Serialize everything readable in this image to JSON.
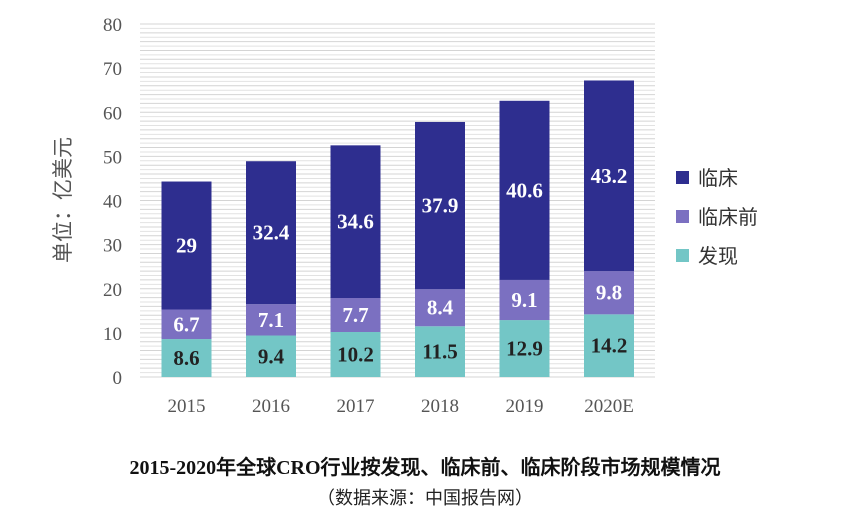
{
  "chart_data": {
    "type": "bar",
    "stacked": true,
    "categories": [
      "2015",
      "2016",
      "2017",
      "2018",
      "2019",
      "2020E"
    ],
    "series": [
      {
        "name": "发现",
        "values": [
          8.6,
          9.4,
          10.2,
          11.5,
          12.9,
          14.2
        ],
        "color": "#73C6C6",
        "label_color": "#222222"
      },
      {
        "name": "临床前",
        "values": [
          6.7,
          7.1,
          7.7,
          8.4,
          9.1,
          9.8
        ],
        "color": "#7B70C1",
        "label_color": "#ffffff"
      },
      {
        "name": "临床",
        "values": [
          29,
          32.4,
          34.6,
          37.9,
          40.6,
          43.2
        ],
        "color": "#2E2E8F",
        "label_color": "#ffffff"
      }
    ],
    "ylabel": "单位：亿美元",
    "ylim": [
      0,
      80
    ],
    "yticks": [
      0,
      10,
      20,
      30,
      40,
      50,
      60,
      70,
      80
    ],
    "grid": true,
    "legend_position": "right",
    "legend_order": [
      "临床",
      "临床前",
      "发现"
    ],
    "title": "2015-2020年全球CRO行业按发现、临床前、临床阶段市场规模情况",
    "source": "（数据来源：中国报告网）"
  }
}
